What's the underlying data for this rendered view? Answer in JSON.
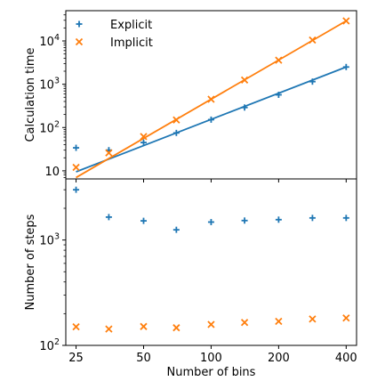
{
  "chart_data": [
    {
      "type": "scatter",
      "title": "",
      "xlabel": "",
      "ylabel": "Calculation time",
      "x_scale": "log",
      "y_scale": "log",
      "xlim": [
        22.5,
        445
      ],
      "ylim": [
        6.5,
        50000
      ],
      "x_ticks": [
        25,
        50,
        100,
        200,
        400
      ],
      "y_ticks": [
        {
          "value": 10,
          "base": "10",
          "exp": ""
        },
        {
          "value": 100,
          "base": "10",
          "exp": "2"
        },
        {
          "value": 1000,
          "base": "10",
          "exp": "3"
        },
        {
          "value": 10000,
          "base": "10",
          "exp": "4"
        }
      ],
      "legend_position": "top-left",
      "series": [
        {
          "name": "Explicit",
          "marker": "plus",
          "color": "#1f77b4",
          "x": [
            25,
            35,
            50,
            70,
            100,
            141,
            200,
            283,
            400
          ],
          "y": [
            34,
            30,
            45,
            75,
            152,
            290,
            570,
            1150,
            2500
          ],
          "fit_line": {
            "x": [
              25,
              400
            ],
            "y": [
              9.5,
              2500
            ]
          }
        },
        {
          "name": "Implicit",
          "marker": "x",
          "color": "#ff7f0e",
          "x": [
            25,
            35,
            50,
            70,
            100,
            141,
            200,
            283,
            400
          ],
          "y": [
            12,
            26,
            62,
            150,
            450,
            1250,
            3600,
            10500,
            29000
          ],
          "fit_line": {
            "x": [
              25,
              400
            ],
            "y": [
              7,
              29000
            ]
          }
        }
      ]
    },
    {
      "type": "scatter",
      "title": "",
      "xlabel": "Number of bins",
      "ylabel": "Number of steps",
      "x_scale": "log",
      "y_scale": "log",
      "xlim": [
        22.5,
        445
      ],
      "ylim": [
        100,
        3800
      ],
      "x_ticks": [
        25,
        50,
        100,
        200,
        400
      ],
      "y_ticks": [
        {
          "value": 100,
          "base": "10",
          "exp": "2"
        },
        {
          "value": 1000,
          "base": "10",
          "exp": "3"
        }
      ],
      "series": [
        {
          "name": "Explicit",
          "marker": "plus",
          "color": "#1f77b4",
          "x": [
            25,
            35,
            50,
            70,
            100,
            141,
            200,
            283,
            400
          ],
          "y": [
            3000,
            1650,
            1520,
            1250,
            1480,
            1530,
            1560,
            1620,
            1620
          ]
        },
        {
          "name": "Implicit",
          "marker": "x",
          "color": "#ff7f0e",
          "x": [
            25,
            35,
            50,
            70,
            100,
            141,
            200,
            283,
            400
          ],
          "y": [
            150,
            143,
            151,
            147,
            158,
            165,
            169,
            178,
            182
          ]
        }
      ]
    }
  ]
}
